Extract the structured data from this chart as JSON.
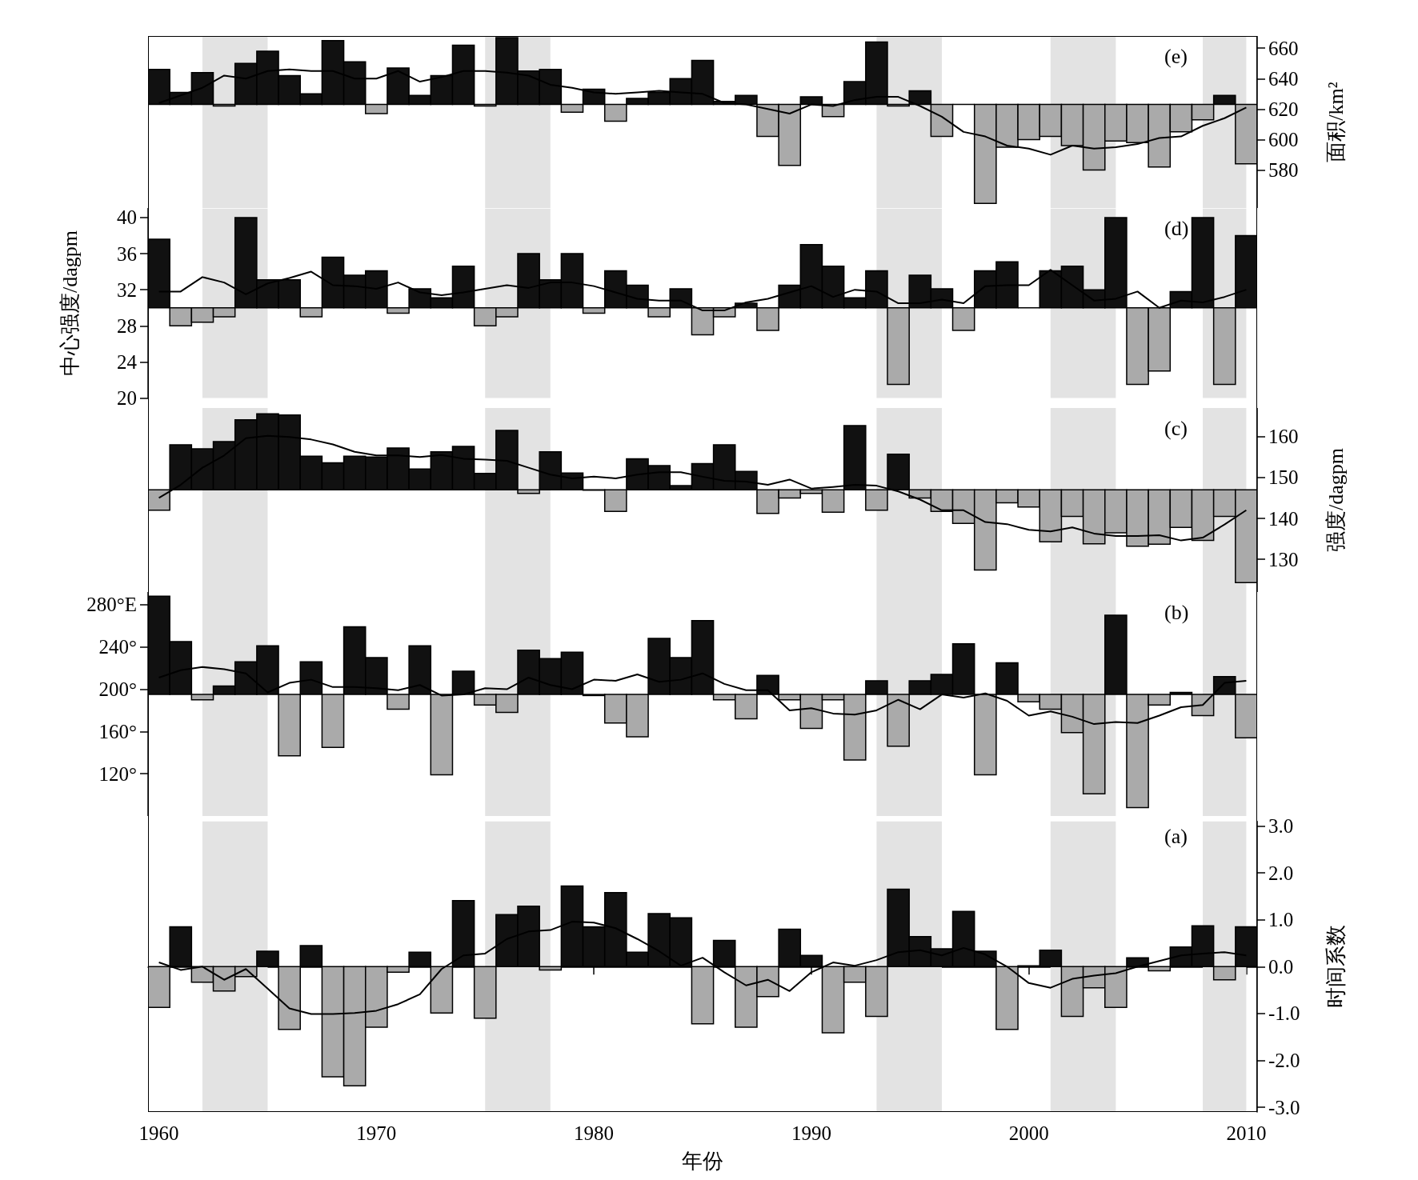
{
  "chart_data": [
    {
      "type": "bar",
      "x": [
        1960,
        1961,
        1962,
        1963,
        1964,
        1965,
        1966,
        1967,
        1968,
        1969,
        1970,
        1971,
        1972,
        1973,
        1974,
        1975,
        1976,
        1977,
        1978,
        1979,
        1980,
        1981,
        1982,
        1983,
        1984,
        1985,
        1986,
        1987,
        1988,
        1989,
        1990,
        1991,
        1992,
        1993,
        1994,
        1995,
        1996,
        1997,
        1998,
        1999,
        2000,
        2001,
        2002,
        2003,
        2004,
        2005,
        2006,
        2007,
        2008,
        2009,
        2010
      ],
      "xlim": [
        1959.5,
        2010.5
      ],
      "tick_labels": "y",
      "y2label": "面积/km²",
      "y2lim": [
        555,
        668
      ],
      "y2ticks": [
        580,
        600,
        620,
        640,
        660
      ],
      "annotations": [
        "(e)"
      ],
      "bands": [
        {
          "axis": "x",
          "from": 1962,
          "to": 1965,
          "color": "#e3e3e3"
        },
        {
          "axis": "x",
          "from": 1975,
          "to": 1978,
          "color": "#e3e3e3"
        },
        {
          "axis": "x",
          "from": 1993,
          "to": 1996,
          "color": "#e3e3e3"
        },
        {
          "axis": "x",
          "from": 2001,
          "to": 2004,
          "color": "#e3e3e3"
        },
        {
          "axis": "x",
          "from": 2008,
          "to": 2010,
          "color": "#e3e3e3"
        }
      ],
      "series": [
        {
          "axis": "y2",
          "base": [
            623,
            623,
            623,
            623,
            623,
            623,
            623,
            623,
            623,
            623,
            623,
            623,
            623,
            623,
            623,
            623,
            623,
            623,
            623,
            623,
            623,
            623,
            623,
            623,
            623,
            623,
            623,
            623,
            623,
            623,
            623,
            623,
            623,
            623,
            623,
            623,
            623,
            623,
            623,
            623,
            623,
            623,
            623,
            623,
            623,
            623,
            623,
            623,
            623,
            623,
            623
          ],
          "values": [
            23,
            8,
            21,
            -1,
            27,
            35,
            19,
            7,
            42,
            28,
            -6,
            24,
            6,
            19,
            39,
            -1,
            44,
            22,
            23,
            -5,
            10,
            -11,
            4,
            8,
            17,
            29,
            2,
            6,
            -21,
            -40,
            5,
            -8,
            15,
            41,
            -1,
            9,
            -21,
            0,
            -65,
            -28,
            -23,
            -21,
            -27,
            -43,
            -24,
            -25,
            -41,
            -18,
            -10,
            6,
            -39
          ],
          "colors": [
            "#111111",
            "#111111",
            "#111111",
            "#aaaaaa",
            "#111111",
            "#111111",
            "#111111",
            "#111111",
            "#111111",
            "#111111",
            "#aaaaaa",
            "#111111",
            "#111111",
            "#111111",
            "#111111",
            "#aaaaaa",
            "#111111",
            "#111111",
            "#111111",
            "#aaaaaa",
            "#111111",
            "#aaaaaa",
            "#111111",
            "#111111",
            "#111111",
            "#111111",
            "#111111",
            "#111111",
            "#aaaaaa",
            "#aaaaaa",
            "#111111",
            "#aaaaaa",
            "#111111",
            "#111111",
            "#aaaaaa",
            "#111111",
            "#aaaaaa",
            "#000000",
            "#aaaaaa",
            "#aaaaaa",
            "#aaaaaa",
            "#aaaaaa",
            "#aaaaaa",
            "#aaaaaa",
            "#aaaaaa",
            "#aaaaaa",
            "#aaaaaa",
            "#aaaaaa",
            "#aaaaaa",
            "#111111",
            "#aaaaaa"
          ]
        },
        {
          "type": "line",
          "axis": "y2",
          "color": "#000000",
          "marker": "none",
          "values": [
            624,
            629,
            634,
            642,
            640,
            645,
            646,
            645,
            645,
            640,
            640,
            645,
            638,
            641,
            645,
            645,
            644,
            642,
            636,
            634,
            631,
            630,
            631,
            632,
            631,
            630,
            624,
            623,
            620,
            617,
            623,
            622,
            626,
            628,
            628,
            622,
            615,
            605,
            602,
            596,
            594,
            590,
            596,
            594,
            595,
            597,
            601,
            602,
            609,
            614,
            621
          ]
        }
      ]
    },
    {
      "type": "bar",
      "x": [
        1960,
        1961,
        1962,
        1963,
        1964,
        1965,
        1966,
        1967,
        1968,
        1969,
        1970,
        1971,
        1972,
        1973,
        1974,
        1975,
        1976,
        1977,
        1978,
        1979,
        1980,
        1981,
        1982,
        1983,
        1984,
        1985,
        1986,
        1987,
        1988,
        1989,
        1990,
        1991,
        1992,
        1993,
        1994,
        1995,
        1996,
        1997,
        1998,
        1999,
        2000,
        2001,
        2002,
        2003,
        2004,
        2005,
        2006,
        2007,
        2008,
        2009,
        2010
      ],
      "xlim": [
        1959.5,
        2010.5
      ],
      "tick_labels": "y",
      "ylabel": "中心强度/dagpm",
      "ylim": [
        20,
        41
      ],
      "yticks": [
        20,
        24,
        28,
        32,
        36,
        40
      ],
      "annotations": [
        "(d)"
      ],
      "bands": [
        {
          "axis": "x",
          "from": 1962,
          "to": 1965,
          "color": "#e3e3e3"
        },
        {
          "axis": "x",
          "from": 1975,
          "to": 1978,
          "color": "#e3e3e3"
        },
        {
          "axis": "x",
          "from": 1993,
          "to": 1996,
          "color": "#e3e3e3"
        },
        {
          "axis": "x",
          "from": 2001,
          "to": 2004,
          "color": "#e3e3e3"
        },
        {
          "axis": "x",
          "from": 2008,
          "to": 2010,
          "color": "#e3e3e3"
        }
      ],
      "series": [
        {
          "base": [
            30,
            30,
            30,
            30,
            30,
            30,
            30,
            30,
            30,
            30,
            30,
            30,
            30,
            30,
            30,
            30,
            30,
            30,
            30,
            30,
            30,
            30,
            30,
            30,
            30,
            30,
            30,
            30,
            30,
            30,
            30,
            30,
            30,
            30,
            30,
            30,
            30,
            30,
            30,
            30,
            30,
            30,
            30,
            30,
            30,
            30,
            30,
            30,
            30,
            30,
            30
          ],
          "values": [
            7.6,
            -2,
            -1.6,
            -1,
            10,
            3.1,
            3.1,
            -1,
            5.6,
            3.6,
            4.1,
            -0.6,
            2.1,
            1.1,
            4.6,
            -2,
            -1,
            6,
            3.1,
            6,
            -0.6,
            4.1,
            2.5,
            -1,
            2.1,
            -3,
            -1,
            0.5,
            -2.5,
            2.5,
            7,
            4.6,
            1.1,
            4.1,
            -8.5,
            3.6,
            2.1,
            -2.5,
            4.1,
            5.1,
            0,
            4.1,
            4.6,
            2,
            10,
            -8.5,
            -7,
            1.8,
            10,
            -8.5,
            8
          ],
          "colors": [
            "#111111",
            "#aaaaaa",
            "#aaaaaa",
            "#aaaaaa",
            "#111111",
            "#111111",
            "#111111",
            "#aaaaaa",
            "#111111",
            "#111111",
            "#111111",
            "#aaaaaa",
            "#111111",
            "#111111",
            "#111111",
            "#aaaaaa",
            "#aaaaaa",
            "#111111",
            "#111111",
            "#111111",
            "#aaaaaa",
            "#111111",
            "#111111",
            "#aaaaaa",
            "#111111",
            "#aaaaaa",
            "#aaaaaa",
            "#111111",
            "#aaaaaa",
            "#111111",
            "#111111",
            "#111111",
            "#111111",
            "#111111",
            "#aaaaaa",
            "#111111",
            "#111111",
            "#aaaaaa",
            "#111111",
            "#111111",
            "#000000",
            "#111111",
            "#111111",
            "#111111",
            "#111111",
            "#aaaaaa",
            "#aaaaaa",
            "#111111",
            "#111111",
            "#aaaaaa",
            "#111111"
          ]
        },
        {
          "type": "line",
          "color": "#000000",
          "marker": "none",
          "values": [
            31.8,
            31.8,
            33.4,
            32.8,
            31.5,
            32.7,
            33.3,
            34,
            32.5,
            32.4,
            32.1,
            32.8,
            31.7,
            31.4,
            31.7,
            32.1,
            32.5,
            32.2,
            32.8,
            32.8,
            32.4,
            31.7,
            31,
            30.8,
            30.8,
            29.7,
            29.7,
            30.6,
            31,
            31.7,
            32.4,
            31.2,
            32,
            31.8,
            30.5,
            30.5,
            30.9,
            30.5,
            32.4,
            32.5,
            32.5,
            34.2,
            32.5,
            30.8,
            31,
            31.8,
            30,
            30.8,
            30.6,
            31.2,
            32
          ]
        }
      ]
    },
    {
      "type": "bar",
      "x": [
        1960,
        1961,
        1962,
        1963,
        1964,
        1965,
        1966,
        1967,
        1968,
        1969,
        1970,
        1971,
        1972,
        1973,
        1974,
        1975,
        1976,
        1977,
        1978,
        1979,
        1980,
        1981,
        1982,
        1983,
        1984,
        1985,
        1986,
        1987,
        1988,
        1989,
        1990,
        1991,
        1992,
        1993,
        1994,
        1995,
        1996,
        1997,
        1998,
        1999,
        2000,
        2001,
        2002,
        2003,
        2004,
        2005,
        2006,
        2007,
        2008,
        2009,
        2010
      ],
      "xlim": [
        1959.5,
        2010.5
      ],
      "tick_labels": "y",
      "y2label": "强度/dagpm",
      "y2lim": [
        122,
        167
      ],
      "y2ticks": [
        130,
        140,
        150,
        160
      ],
      "annotations": [
        "(c)"
      ],
      "bands": [
        {
          "axis": "x",
          "from": 1962,
          "to": 1965,
          "color": "#e3e3e3"
        },
        {
          "axis": "x",
          "from": 1975,
          "to": 1978,
          "color": "#e3e3e3"
        },
        {
          "axis": "x",
          "from": 1993,
          "to": 1996,
          "color": "#e3e3e3"
        },
        {
          "axis": "x",
          "from": 2001,
          "to": 2004,
          "color": "#e3e3e3"
        },
        {
          "axis": "x",
          "from": 2008,
          "to": 2010,
          "color": "#e3e3e3"
        }
      ],
      "series": [
        {
          "axis": "y2",
          "base": [
            147,
            147,
            147,
            147,
            147,
            147,
            147,
            147,
            147,
            147,
            147,
            147,
            147,
            147,
            147,
            147,
            147,
            147,
            147,
            147,
            147,
            147,
            147,
            147,
            147,
            147,
            147,
            147,
            147,
            147,
            147,
            147,
            147,
            147,
            147,
            147,
            147,
            147,
            147,
            147,
            147,
            147,
            147,
            147,
            147,
            147,
            147,
            147,
            147,
            147,
            147
          ],
          "values": [
            -5,
            11,
            10,
            11.8,
            17.1,
            18.6,
            18.3,
            8.2,
            6.6,
            8.2,
            8,
            10.2,
            5.1,
            9.3,
            10.6,
            4,
            14.5,
            -0.9,
            9.3,
            4.1,
            -0.1,
            -5.3,
            7.6,
            5.9,
            1,
            6.4,
            11,
            4.5,
            -5.8,
            -2,
            -0.9,
            -5.5,
            15.7,
            -5,
            8.7,
            -2,
            -5.3,
            -8.2,
            -19.6,
            -3.2,
            -4.2,
            -12.7,
            -6.5,
            -13.2,
            -10.5,
            -13.8,
            -13.3,
            -9.2,
            -12.4,
            -6.5,
            -22.7
          ],
          "colors": [
            "#aaaaaa",
            "#111111",
            "#111111",
            "#111111",
            "#111111",
            "#111111",
            "#111111",
            "#111111",
            "#111111",
            "#111111",
            "#111111",
            "#111111",
            "#111111",
            "#111111",
            "#111111",
            "#111111",
            "#111111",
            "#aaaaaa",
            "#111111",
            "#111111",
            "#aaaaaa",
            "#aaaaaa",
            "#111111",
            "#111111",
            "#111111",
            "#111111",
            "#111111",
            "#111111",
            "#aaaaaa",
            "#aaaaaa",
            "#aaaaaa",
            "#aaaaaa",
            "#111111",
            "#aaaaaa",
            "#111111",
            "#aaaaaa",
            "#aaaaaa",
            "#aaaaaa",
            "#aaaaaa",
            "#aaaaaa",
            "#aaaaaa",
            "#aaaaaa",
            "#aaaaaa",
            "#aaaaaa",
            "#aaaaaa",
            "#aaaaaa",
            "#aaaaaa",
            "#aaaaaa",
            "#aaaaaa",
            "#aaaaaa",
            "#aaaaaa"
          ]
        },
        {
          "type": "line",
          "axis": "y2",
          "color": "#000000",
          "marker": "none",
          "values": [
            145,
            148.2,
            152.4,
            155.4,
            159.6,
            160.2,
            159.9,
            159.3,
            158.1,
            156.3,
            155.4,
            155.4,
            155,
            155.5,
            154.6,
            154.4,
            154.1,
            152.4,
            150.7,
            149.8,
            150.2,
            149.8,
            150.7,
            151.3,
            151.3,
            150.2,
            149.2,
            149,
            148.2,
            149.5,
            147.3,
            147.7,
            148.2,
            148,
            146.6,
            144.6,
            142,
            142,
            139.1,
            138.6,
            137.2,
            136.8,
            137.8,
            136.3,
            135.7,
            135.7,
            135.9,
            134.6,
            135.3,
            138.5,
            142
          ]
        }
      ]
    },
    {
      "type": "bar",
      "x": [
        1960,
        1961,
        1962,
        1963,
        1964,
        1965,
        1966,
        1967,
        1968,
        1969,
        1970,
        1971,
        1972,
        1973,
        1974,
        1975,
        1976,
        1977,
        1978,
        1979,
        1980,
        1981,
        1982,
        1983,
        1984,
        1985,
        1986,
        1987,
        1988,
        1989,
        1990,
        1991,
        1992,
        1993,
        1994,
        1995,
        1996,
        1997,
        1998,
        1999,
        2000,
        2001,
        2002,
        2003,
        2004,
        2005,
        2006,
        2007,
        2008,
        2009,
        2010
      ],
      "xlim": [
        1959.5,
        2010.5
      ],
      "tick_labels": "y",
      "ylim": [
        80,
        292
      ],
      "yticks": [
        {
          "value": 120,
          "label": "120°"
        },
        {
          "value": 160,
          "label": "160°"
        },
        {
          "value": 200,
          "label": "200°"
        },
        {
          "value": 240,
          "label": "240°"
        },
        {
          "value": 280,
          "label": "280°E"
        }
      ],
      "annotations": [
        "(b)"
      ],
      "bands": [
        {
          "axis": "x",
          "from": 1962,
          "to": 1965,
          "color": "#e3e3e3"
        },
        {
          "axis": "x",
          "from": 1975,
          "to": 1978,
          "color": "#e3e3e3"
        },
        {
          "axis": "x",
          "from": 1993,
          "to": 1996,
          "color": "#e3e3e3"
        },
        {
          "axis": "x",
          "from": 2001,
          "to": 2004,
          "color": "#e3e3e3"
        },
        {
          "axis": "x",
          "from": 2008,
          "to": 2010,
          "color": "#e3e3e3"
        }
      ],
      "series": [
        {
          "base": [
            195,
            195,
            195,
            195,
            195,
            195,
            195,
            195,
            195,
            195,
            195,
            195,
            195,
            195,
            195,
            195,
            195,
            195,
            195,
            195,
            195,
            195,
            195,
            195,
            195,
            195,
            195,
            195,
            195,
            195,
            195,
            195,
            195,
            195,
            195,
            195,
            195,
            195,
            195,
            195,
            195,
            195,
            195,
            195,
            195,
            195,
            195,
            195,
            195,
            195,
            195
          ],
          "values": [
            93,
            50,
            -5,
            8,
            31,
            46,
            -58,
            31,
            -50,
            64,
            35,
            -14,
            46,
            -76,
            22,
            -10,
            -17,
            42,
            34,
            40,
            -1,
            -27,
            -40,
            53,
            35,
            70,
            -5,
            -23,
            18,
            -5,
            -32,
            -5,
            -62,
            13,
            -49,
            13,
            19,
            48,
            -76,
            30,
            -7,
            -14,
            -36,
            -94,
            75,
            -107,
            -10,
            2,
            -20,
            17,
            -41
          ],
          "colors": [
            "#111111",
            "#111111",
            "#aaaaaa",
            "#111111",
            "#111111",
            "#111111",
            "#aaaaaa",
            "#111111",
            "#aaaaaa",
            "#111111",
            "#111111",
            "#aaaaaa",
            "#111111",
            "#aaaaaa",
            "#111111",
            "#aaaaaa",
            "#aaaaaa",
            "#111111",
            "#111111",
            "#111111",
            "#aaaaaa",
            "#aaaaaa",
            "#aaaaaa",
            "#111111",
            "#111111",
            "#111111",
            "#aaaaaa",
            "#aaaaaa",
            "#111111",
            "#aaaaaa",
            "#aaaaaa",
            "#aaaaaa",
            "#aaaaaa",
            "#111111",
            "#aaaaaa",
            "#111111",
            "#111111",
            "#111111",
            "#aaaaaa",
            "#111111",
            "#aaaaaa",
            "#aaaaaa",
            "#aaaaaa",
            "#aaaaaa",
            "#111111",
            "#aaaaaa",
            "#aaaaaa",
            "#111111",
            "#aaaaaa",
            "#111111",
            "#aaaaaa"
          ]
        },
        {
          "type": "line",
          "color": "#000000",
          "marker": "none",
          "values": [
            211,
            218,
            221,
            219,
            215,
            197,
            206,
            209,
            202,
            202,
            201,
            199,
            204,
            194,
            195,
            201,
            200,
            211,
            204,
            200,
            209,
            208,
            214,
            207,
            209,
            215,
            205,
            199,
            199,
            180,
            182,
            177,
            176,
            180,
            190,
            181,
            195,
            192,
            196,
            189,
            175,
            179,
            174,
            167,
            169,
            168,
            175,
            183,
            185,
            206,
            208
          ]
        }
      ]
    },
    {
      "type": "bar",
      "x": [
        1960,
        1961,
        1962,
        1963,
        1964,
        1965,
        1966,
        1967,
        1968,
        1969,
        1970,
        1971,
        1972,
        1973,
        1974,
        1975,
        1976,
        1977,
        1978,
        1979,
        1980,
        1981,
        1982,
        1983,
        1984,
        1985,
        1986,
        1987,
        1988,
        1989,
        1990,
        1991,
        1992,
        1993,
        1994,
        1995,
        1996,
        1997,
        1998,
        1999,
        2000,
        2001,
        2002,
        2003,
        2004,
        2005,
        2006,
        2007,
        2008,
        2009,
        2010
      ],
      "xlim": [
        1959.5,
        2010.5
      ],
      "xticks": [
        1960,
        1970,
        1980,
        1990,
        2000,
        2010
      ],
      "xlabel": "年份",
      "y2label": "时间系数",
      "y2lim": [
        -3.1,
        3.1
      ],
      "y2ticks": [
        {
          "value": -3,
          "label": "-3.0"
        },
        {
          "value": -2,
          "label": "-2.0"
        },
        {
          "value": -1,
          "label": "-1.0"
        },
        {
          "value": 0,
          "label": "0.0"
        },
        {
          "value": 1,
          "label": "1.0"
        },
        {
          "value": 2,
          "label": "2.0"
        },
        {
          "value": 3,
          "label": "3.0"
        }
      ],
      "annotations": [
        "(a)"
      ],
      "bands": [
        {
          "axis": "x",
          "from": 1962,
          "to": 1965,
          "color": "#e3e3e3"
        },
        {
          "axis": "x",
          "from": 1975,
          "to": 1978,
          "color": "#e3e3e3"
        },
        {
          "axis": "x",
          "from": 1993,
          "to": 1996,
          "color": "#e3e3e3"
        },
        {
          "axis": "x",
          "from": 2001,
          "to": 2004,
          "color": "#e3e3e3"
        },
        {
          "axis": "x",
          "from": 2008,
          "to": 2010,
          "color": "#e3e3e3"
        }
      ],
      "series": [
        {
          "axis": "y2",
          "base": [
            0,
            0,
            0,
            0,
            0,
            0,
            0,
            0,
            0,
            0,
            0,
            0,
            0,
            0,
            0,
            0,
            0,
            0,
            0,
            0,
            0,
            0,
            0,
            0,
            0,
            0,
            0,
            0,
            0,
            0,
            0,
            0,
            0,
            0,
            0,
            0,
            0,
            0,
            0,
            0,
            0,
            0,
            0,
            0,
            0,
            0,
            0,
            0,
            0,
            0,
            0
          ],
          "values": [
            -0.87,
            0.85,
            -0.33,
            -0.52,
            -0.21,
            0.33,
            -1.34,
            0.45,
            -2.35,
            -2.54,
            -1.29,
            -0.12,
            0.31,
            -0.99,
            1.41,
            -1.1,
            1.11,
            1.29,
            -0.07,
            1.72,
            0.85,
            1.58,
            0.31,
            1.13,
            1.04,
            -1.22,
            0.56,
            -1.29,
            -0.64,
            0.8,
            0.24,
            -1.41,
            -0.33,
            -1.06,
            1.65,
            0.64,
            0.38,
            1.18,
            0.33,
            -1.34,
            0.02,
            0.35,
            -1.06,
            -0.45,
            -0.87,
            0.19,
            -0.09,
            0.42,
            0.87,
            -0.28,
            0.85
          ],
          "colors": [
            "#aaaaaa",
            "#111111",
            "#aaaaaa",
            "#aaaaaa",
            "#aaaaaa",
            "#111111",
            "#aaaaaa",
            "#111111",
            "#aaaaaa",
            "#aaaaaa",
            "#aaaaaa",
            "#aaaaaa",
            "#111111",
            "#aaaaaa",
            "#111111",
            "#aaaaaa",
            "#111111",
            "#111111",
            "#aaaaaa",
            "#111111",
            "#111111",
            "#111111",
            "#111111",
            "#111111",
            "#111111",
            "#aaaaaa",
            "#111111",
            "#aaaaaa",
            "#aaaaaa",
            "#111111",
            "#111111",
            "#aaaaaa",
            "#aaaaaa",
            "#aaaaaa",
            "#111111",
            "#111111",
            "#111111",
            "#111111",
            "#111111",
            "#aaaaaa",
            "#111111",
            "#111111",
            "#aaaaaa",
            "#aaaaaa",
            "#aaaaaa",
            "#111111",
            "#aaaaaa",
            "#111111",
            "#111111",
            "#aaaaaa",
            "#111111"
          ]
        },
        {
          "type": "line",
          "axis": "y2",
          "color": "#000000",
          "marker": "none",
          "values": [
            0.09,
            -0.07,
            0,
            -0.28,
            -0.05,
            -0.47,
            -0.89,
            -1.01,
            -1.01,
            -0.99,
            -0.94,
            -0.8,
            -0.59,
            -0.05,
            0.24,
            0.28,
            0.59,
            0.75,
            0.78,
            0.96,
            0.94,
            0.82,
            0.59,
            0.33,
            0.02,
            0.19,
            -0.12,
            -0.4,
            -0.28,
            -0.52,
            -0.12,
            0.09,
            0.02,
            0.14,
            0.31,
            0.35,
            0.24,
            0.4,
            0.26,
            0,
            -0.35,
            -0.45,
            -0.26,
            -0.19,
            -0.14,
            0,
            0.12,
            0.24,
            0.28,
            0.31,
            0.24
          ]
        }
      ]
    }
  ]
}
